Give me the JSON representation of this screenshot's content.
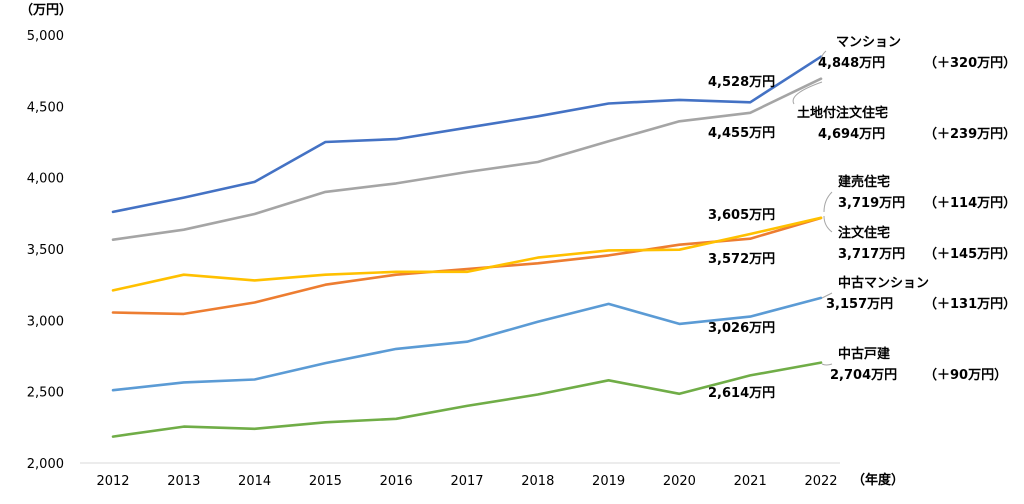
{
  "chart_data": {
    "type": "line",
    "y_unit": "（万円）",
    "x_unit": "（年度）",
    "ylim": [
      2000,
      5000
    ],
    "y_ticks": [
      "2,000",
      "2,500",
      "3,000",
      "3,500",
      "4,000",
      "4,500",
      "5,000"
    ],
    "y_tick_values": [
      2000,
      2500,
      3000,
      3500,
      4000,
      4500,
      5000
    ],
    "categories": [
      "2012",
      "2013",
      "2014",
      "2015",
      "2016",
      "2017",
      "2018",
      "2019",
      "2020",
      "2021",
      "2022"
    ],
    "grid": false,
    "series": [
      {
        "name": "マンション",
        "color": "#4472C4",
        "values": [
          3760,
          3860,
          3970,
          4250,
          4270,
          4350,
          4430,
          4520,
          4545,
          4528,
          4848
        ],
        "label_lines": [
          "マンション",
          "4,848万円"
        ],
        "change": "（＋320万円）",
        "prev_label": "4,528万円"
      },
      {
        "name": "土地付注文住宅",
        "color": "#A5A5A5",
        "values": [
          3565,
          3635,
          3745,
          3900,
          3960,
          4040,
          4110,
          4255,
          4395,
          4455,
          4694
        ],
        "label_lines": [
          "土地付注文住宅",
          "4,694万円"
        ],
        "change": "（＋239万円）",
        "prev_label": "4,455万円"
      },
      {
        "name": "建売住宅",
        "color": "#FFC000",
        "values": [
          3210,
          3320,
          3280,
          3320,
          3340,
          3340,
          3440,
          3490,
          3495,
          3605,
          3719
        ],
        "label_lines": [
          "建売住宅",
          "3,719万円"
        ],
        "change": "（＋114万円）",
        "prev_label": "3,605万円"
      },
      {
        "name": "注文住宅",
        "color": "#ED7D31",
        "values": [
          3055,
          3045,
          3125,
          3250,
          3320,
          3360,
          3400,
          3455,
          3530,
          3572,
          3717
        ],
        "label_lines": [
          "注文住宅",
          "3,717万円"
        ],
        "change": "（＋145万円）",
        "prev_label": "3,572万円"
      },
      {
        "name": "中古マンション",
        "color": "#5B9BD5",
        "values": [
          2510,
          2565,
          2585,
          2700,
          2800,
          2850,
          2990,
          3115,
          2975,
          3026,
          3157
        ],
        "label_lines": [
          "中古マンション",
          "3,157万円"
        ],
        "change": "（＋131万円）",
        "prev_label": "3,026万円"
      },
      {
        "name": "中古戸建",
        "color": "#70AD47",
        "values": [
          2185,
          2255,
          2240,
          2285,
          2310,
          2400,
          2480,
          2580,
          2485,
          2614,
          2704
        ],
        "label_lines": [
          "中古戸建",
          "2,704万円"
        ],
        "change": "（＋90万円）",
        "prev_label": "2,614万円"
      }
    ]
  }
}
